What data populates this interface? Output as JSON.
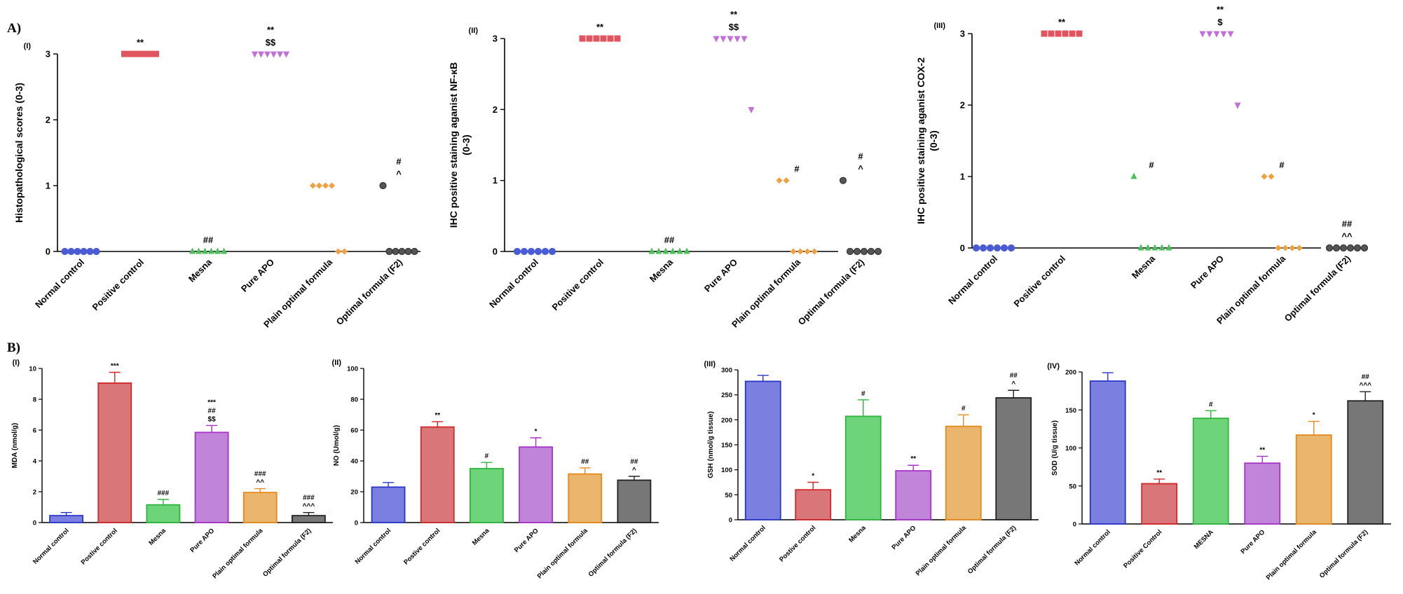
{
  "panel_labels": {
    "A": "A)",
    "B": "B)"
  },
  "chart_data": [
    {
      "id": "A-I",
      "type": "scatter",
      "sublabel": "(I)",
      "ylabel": "Histopathological scores (0-3)",
      "ylim": [
        0,
        3
      ],
      "yticks": [
        0,
        1,
        2,
        3
      ],
      "categories": [
        "Normal control",
        "Positive control",
        "Mesna",
        "Pure APO",
        "Plain optimal formula",
        "Optimal formula (F2)"
      ],
      "colors": [
        "#4a5bd4",
        "#e05560",
        "#4bbf5a",
        "#c070d8",
        "#f0a040",
        "#555555"
      ],
      "markers": [
        "circle",
        "square",
        "triangle-up",
        "triangle-down",
        "diamond",
        "circle"
      ],
      "points": [
        [
          0,
          0,
          0,
          0,
          0,
          0
        ],
        [
          3,
          3,
          3,
          3,
          3,
          3
        ],
        [
          0,
          0,
          0,
          0,
          0,
          0
        ],
        [
          3,
          3,
          3,
          3,
          3,
          3
        ],
        [
          1,
          1,
          1,
          1,
          0,
          0
        ],
        [
          1,
          0,
          0,
          0,
          0,
          0
        ]
      ],
      "annotations": [
        [],
        [
          "**"
        ],
        [
          "##"
        ],
        [
          "$$",
          "**"
        ],
        [],
        [
          "^",
          "#"
        ]
      ],
      "grid": false
    },
    {
      "id": "A-II",
      "type": "scatter",
      "sublabel": "(II)",
      "ylabel": [
        "IHC positive staining aganist NF-κB",
        "(0-3)"
      ],
      "ylim": [
        0,
        3
      ],
      "yticks": [
        0,
        1,
        2,
        3
      ],
      "categories": [
        "Normal control",
        "Positive control",
        "Mesna",
        "Pure APO",
        "Plain optimal formula",
        "Optimal formula (F2)"
      ],
      "colors": [
        "#4a5bd4",
        "#e05560",
        "#4bbf5a",
        "#c070d8",
        "#f0a040",
        "#555555"
      ],
      "markers": [
        "circle",
        "square",
        "triangle-up",
        "triangle-down",
        "diamond",
        "circle"
      ],
      "points": [
        [
          0,
          0,
          0,
          0,
          0,
          0
        ],
        [
          3,
          3,
          3,
          3,
          3,
          3
        ],
        [
          0,
          0,
          0,
          0,
          0,
          0
        ],
        [
          3,
          3,
          3,
          3,
          3,
          2
        ],
        [
          1,
          1,
          0,
          0,
          0,
          0
        ],
        [
          1,
          0,
          0,
          0,
          0,
          0
        ]
      ],
      "annotations": [
        [],
        [
          "**"
        ],
        [
          "##"
        ],
        [
          "$$",
          "**"
        ],
        [
          "#"
        ],
        [
          "^",
          "#"
        ]
      ],
      "grid": false
    },
    {
      "id": "A-III",
      "type": "scatter",
      "sublabel": "(III)",
      "ylabel": [
        "IHC positive staining aganist COX-2",
        "(0-3)"
      ],
      "ylim": [
        0,
        3
      ],
      "yticks": [
        0,
        1,
        2,
        3
      ],
      "categories": [
        "Normal control",
        "Positive control",
        "Mesna",
        "Pure APO",
        "Plain optimal formula",
        "Optimal formula (F2)"
      ],
      "colors": [
        "#4a5bd4",
        "#e05560",
        "#4bbf5a",
        "#c070d8",
        "#f0a040",
        "#555555"
      ],
      "markers": [
        "circle",
        "square",
        "triangle-up",
        "triangle-down",
        "diamond",
        "circle"
      ],
      "points": [
        [
          0,
          0,
          0,
          0,
          0,
          0
        ],
        [
          3,
          3,
          3,
          3,
          3,
          3
        ],
        [
          1,
          0,
          0,
          0,
          0,
          0
        ],
        [
          3,
          3,
          3,
          3,
          3,
          2
        ],
        [
          1,
          1,
          0,
          0,
          0,
          0
        ],
        [
          0,
          0,
          0,
          0,
          0,
          0
        ]
      ],
      "annotations": [
        [],
        [
          "**"
        ],
        [
          "#"
        ],
        [
          "$",
          "**"
        ],
        [
          "#"
        ],
        [
          "^^",
          "##"
        ]
      ],
      "grid": false
    },
    {
      "id": "B-I",
      "type": "bar",
      "sublabel": "(I)",
      "ylabel": "MDA (nmol/g)",
      "ylim": [
        0,
        10
      ],
      "yticks": [
        0,
        2,
        4,
        6,
        8,
        10
      ],
      "categories": [
        "Normal control",
        "Postive control",
        "Mesna",
        "Pure APO",
        "Plain optimal formula",
        "Optimal formula (F2)"
      ],
      "values": [
        0.45,
        9.05,
        1.15,
        5.85,
        1.95,
        0.45
      ],
      "errors": [
        0.2,
        0.7,
        0.35,
        0.45,
        0.25,
        0.2
      ],
      "colors": [
        "#7b80e0",
        "#d8767a",
        "#6ed47a",
        "#c085d8",
        "#eab56c",
        "#777777"
      ],
      "edges": [
        "#2a36c8",
        "#d02828",
        "#2fb43c",
        "#a632c8",
        "#e68a1e",
        "#222222"
      ],
      "annotations": [
        [],
        [
          "***"
        ],
        [
          "###"
        ],
        [
          "$$",
          "##",
          "***"
        ],
        [
          "^^",
          "###"
        ],
        [
          "^^^",
          "###"
        ]
      ],
      "grid": false
    },
    {
      "id": "B-II",
      "type": "bar",
      "sublabel": "(II)",
      "ylabel": "NO (Umol/g)",
      "ylim": [
        0,
        100
      ],
      "yticks": [
        0,
        20,
        40,
        60,
        80,
        100
      ],
      "categories": [
        "Normal control",
        "Postive control",
        "Mesna",
        "Pure APO",
        "Plain optimal formula",
        "Optimal formula (F2)"
      ],
      "values": [
        23,
        62,
        35,
        49,
        31.5,
        27.5
      ],
      "errors": [
        3,
        3.5,
        4,
        6,
        4,
        2.5
      ],
      "colors": [
        "#7b80e0",
        "#d8767a",
        "#6ed47a",
        "#c085d8",
        "#eab56c",
        "#777777"
      ],
      "edges": [
        "#2a36c8",
        "#d02828",
        "#2fb43c",
        "#a632c8",
        "#e68a1e",
        "#222222"
      ],
      "annotations": [
        [],
        [
          "**"
        ],
        [
          "#"
        ],
        [
          "*"
        ],
        [
          "##"
        ],
        [
          "^",
          "##"
        ]
      ],
      "grid": false
    },
    {
      "id": "B-III",
      "type": "bar",
      "sublabel": "(III)",
      "ylabel": "GSH (nmol/g tissue)",
      "ylim": [
        0,
        300
      ],
      "yticks": [
        0,
        50,
        100,
        150,
        200,
        250,
        300
      ],
      "categories": [
        "Normal control",
        "Postive control",
        "Mesna",
        "Pure APO",
        "Plain optimal formula",
        "Optimal formula (F2)"
      ],
      "values": [
        277,
        60,
        207,
        98,
        187,
        244
      ],
      "errors": [
        12,
        15,
        33,
        11,
        23,
        15
      ],
      "colors": [
        "#7b80e0",
        "#d8767a",
        "#6ed47a",
        "#c085d8",
        "#eab56c",
        "#777777"
      ],
      "edges": [
        "#2a36c8",
        "#d02828",
        "#2fb43c",
        "#a632c8",
        "#e68a1e",
        "#222222"
      ],
      "annotations": [
        [],
        [
          "*"
        ],
        [
          "#"
        ],
        [
          "**"
        ],
        [
          "#"
        ],
        [
          "^",
          "##"
        ]
      ],
      "grid": false
    },
    {
      "id": "B-IV",
      "type": "bar",
      "sublabel": "(IV)",
      "ylabel": "SOD (U/g tissue)",
      "ylim": [
        0,
        200
      ],
      "yticks": [
        0,
        50,
        100,
        150,
        200
      ],
      "categories": [
        "Normal control",
        "Positive Control",
        "MESNA",
        "Pure APO",
        "Plain optimal formula",
        "Optimal formula (F2)"
      ],
      "values": [
        188,
        53,
        139,
        80,
        117,
        162
      ],
      "errors": [
        11,
        6,
        10,
        9,
        18,
        12
      ],
      "colors": [
        "#7b80e0",
        "#d8767a",
        "#6ed47a",
        "#c085d8",
        "#eab56c",
        "#777777"
      ],
      "edges": [
        "#2a36c8",
        "#d02828",
        "#2fb43c",
        "#a632c8",
        "#e68a1e",
        "#222222"
      ],
      "annotations": [
        [],
        [
          "**"
        ],
        [
          "#"
        ],
        [
          "**"
        ],
        [
          "*"
        ],
        [
          "^^^",
          "##"
        ]
      ],
      "grid": false
    }
  ]
}
